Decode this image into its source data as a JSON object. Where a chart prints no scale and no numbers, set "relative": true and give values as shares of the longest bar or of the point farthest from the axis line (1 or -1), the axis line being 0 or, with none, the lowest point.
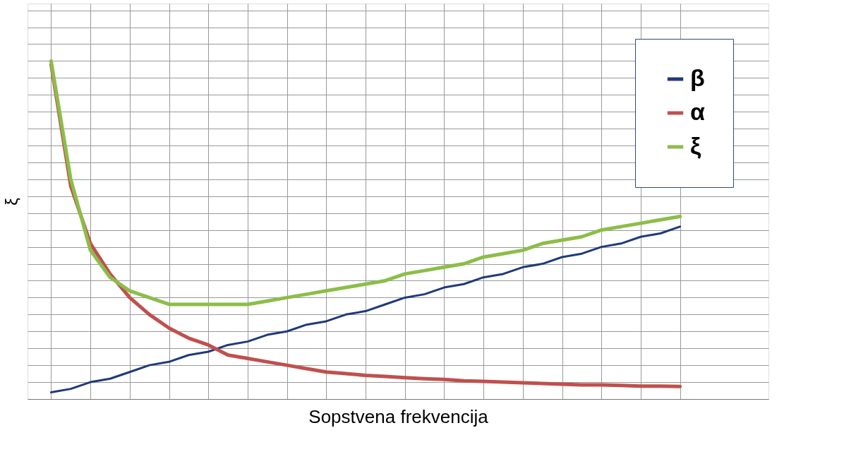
{
  "chart_data": {
    "type": "line",
    "relative": true,
    "xlabel": "Sopstvena frekvencija",
    "ylabel": "ξ",
    "grid": true,
    "legend": "top right",
    "categories": [
      null,
      null,
      null,
      null,
      null,
      null,
      null,
      null,
      null,
      null,
      null,
      null,
      null,
      null,
      null,
      null,
      null,
      null,
      null,
      null,
      null,
      null,
      null,
      null,
      null,
      null,
      null,
      null,
      null,
      null,
      null,
      null,
      null
    ],
    "series": [
      {
        "name": "β",
        "color": "#1f3a7a",
        "values": [
          0.02,
          0.03,
          0.05,
          0.06,
          0.08,
          0.1,
          0.11,
          0.13,
          0.14,
          0.16,
          0.17,
          0.19,
          0.2,
          0.22,
          0.23,
          0.25,
          0.26,
          0.28,
          0.3,
          0.31,
          0.33,
          0.34,
          0.36,
          0.37,
          0.39,
          0.4,
          0.42,
          0.43,
          0.45,
          0.46,
          0.48,
          0.49,
          0.51
        ]
      },
      {
        "name": "α",
        "color": "#c0504d",
        "values": [
          0.99,
          0.63,
          0.46,
          0.37,
          0.3,
          0.25,
          0.21,
          0.18,
          0.16,
          0.13,
          0.12,
          0.11,
          0.1,
          0.09,
          0.08,
          0.075,
          0.07,
          0.067,
          0.063,
          0.06,
          0.058,
          0.054,
          0.052,
          0.05,
          0.048,
          0.046,
          0.044,
          0.042,
          0.042,
          0.04,
          0.038,
          0.038,
          0.037
        ]
      },
      {
        "name": "ξ",
        "color": "#8cbd4a",
        "values": [
          1.0,
          0.65,
          0.44,
          0.36,
          0.32,
          0.3,
          0.28,
          0.28,
          0.28,
          0.28,
          0.28,
          0.29,
          0.3,
          0.31,
          0.32,
          0.33,
          0.34,
          0.35,
          0.37,
          0.38,
          0.39,
          0.4,
          0.42,
          0.43,
          0.44,
          0.46,
          0.47,
          0.48,
          0.5,
          0.51,
          0.52,
          0.53,
          0.54
        ]
      }
    ]
  }
}
